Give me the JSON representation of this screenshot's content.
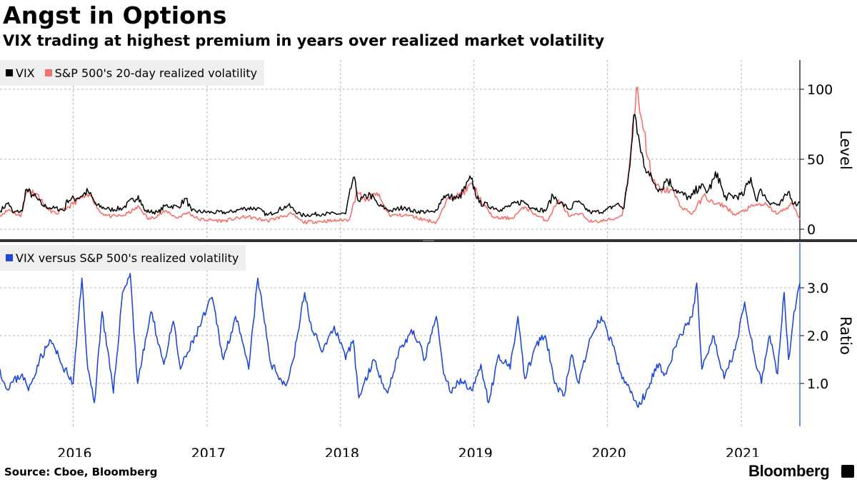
{
  "title": "Angst in Options",
  "subtitle": "VIX trading at highest premium in years over realized market volatility",
  "source": "Source: Cboe, Bloomberg",
  "brand": "Bloomberg",
  "colors": {
    "vix": "#000000",
    "realized": "#f4716b",
    "ratio": "#1f48d6",
    "grid": "#b5b5b5",
    "divider": "#333333"
  },
  "chart_data": [
    {
      "type": "line",
      "panel": "top",
      "legend_position": "top-left",
      "ylabel": "Level",
      "ylim": [
        0,
        120
      ],
      "yticks": [
        0,
        50,
        100
      ],
      "xlim": [
        "2015-06-15",
        "2021-06-10"
      ],
      "x_tick_labels": [
        "2016",
        "2017",
        "2018",
        "2019",
        "2020",
        "2021"
      ],
      "grid": true,
      "series": [
        {
          "name": "VIX",
          "color": "#000000",
          "points": [
            [
              "2015-06-15",
              13
            ],
            [
              "2015-07-08",
              19
            ],
            [
              "2015-07-20",
              12
            ],
            [
              "2015-08-15",
              13
            ],
            [
              "2015-08-24",
              28
            ],
            [
              "2015-09-15",
              24
            ],
            [
              "2015-10-10",
              17
            ],
            [
              "2015-11-05",
              15
            ],
            [
              "2015-12-10",
              14
            ],
            [
              "2015-12-15",
              21
            ],
            [
              "2016-01-10",
              22
            ],
            [
              "2016-02-11",
              27
            ],
            [
              "2016-03-05",
              17
            ],
            [
              "2016-04-10",
              14
            ],
            [
              "2016-05-15",
              15
            ],
            [
              "2016-06-27",
              24
            ],
            [
              "2016-07-15",
              13
            ],
            [
              "2016-08-20",
              12
            ],
            [
              "2016-09-10",
              17
            ],
            [
              "2016-10-15",
              16
            ],
            [
              "2016-11-04",
              22
            ],
            [
              "2016-11-20",
              13
            ],
            [
              "2017-01-15",
              12
            ],
            [
              "2017-03-01",
              12
            ],
            [
              "2017-04-15",
              15
            ],
            [
              "2017-05-18",
              15
            ],
            [
              "2017-06-15",
              10
            ],
            [
              "2017-08-11",
              17
            ],
            [
              "2017-09-15",
              10
            ],
            [
              "2017-11-15",
              11
            ],
            [
              "2018-01-15",
              11
            ],
            [
              "2018-02-05",
              37
            ],
            [
              "2018-02-20",
              20
            ],
            [
              "2018-03-23",
              25
            ],
            [
              "2018-04-15",
              17
            ],
            [
              "2018-05-20",
              13
            ],
            [
              "2018-06-25",
              16
            ],
            [
              "2018-07-15",
              13
            ],
            [
              "2018-09-15",
              12
            ],
            [
              "2018-10-11",
              24
            ],
            [
              "2018-10-29",
              23
            ],
            [
              "2018-11-20",
              22
            ],
            [
              "2018-12-24",
              36
            ],
            [
              "2019-01-15",
              19
            ],
            [
              "2019-03-15",
              14
            ],
            [
              "2019-05-13",
              20
            ],
            [
              "2019-06-15",
              15
            ],
            [
              "2019-07-15",
              13
            ],
            [
              "2019-08-05",
              24
            ],
            [
              "2019-08-25",
              19
            ],
            [
              "2019-09-20",
              14
            ],
            [
              "2019-10-08",
              20
            ],
            [
              "2019-11-15",
              12
            ],
            [
              "2019-12-25",
              13
            ],
            [
              "2020-01-27",
              18
            ],
            [
              "2020-02-15",
              15
            ],
            [
              "2020-02-28",
              40
            ],
            [
              "2020-03-16",
              82
            ],
            [
              "2020-04-01",
              55
            ],
            [
              "2020-04-25",
              38
            ],
            [
              "2020-05-25",
              28
            ],
            [
              "2020-06-11",
              36
            ],
            [
              "2020-07-15",
              26
            ],
            [
              "2020-08-15",
              22
            ],
            [
              "2020-09-08",
              31
            ],
            [
              "2020-10-01",
              27
            ],
            [
              "2020-10-28",
              40
            ],
            [
              "2020-11-15",
              23
            ],
            [
              "2021-01-05",
              24
            ],
            [
              "2021-01-27",
              37
            ],
            [
              "2021-02-10",
              21
            ],
            [
              "2021-02-25",
              28
            ],
            [
              "2021-03-15",
              20
            ],
            [
              "2021-04-15",
              17
            ],
            [
              "2021-05-12",
              27
            ],
            [
              "2021-05-25",
              18
            ],
            [
              "2021-06-10",
              19
            ]
          ]
        },
        {
          "name": "S&P 500's 20-day realized volatility",
          "color": "#f4716b",
          "points": [
            [
              "2015-06-15",
              10
            ],
            [
              "2015-07-10",
              14
            ],
            [
              "2015-08-10",
              9
            ],
            [
              "2015-08-28",
              28
            ],
            [
              "2015-09-25",
              25
            ],
            [
              "2015-10-20",
              15
            ],
            [
              "2015-11-15",
              11
            ],
            [
              "2015-12-20",
              16
            ],
            [
              "2016-01-20",
              22
            ],
            [
              "2016-02-20",
              24
            ],
            [
              "2016-03-15",
              12
            ],
            [
              "2016-04-15",
              9
            ],
            [
              "2016-05-20",
              10
            ],
            [
              "2016-06-29",
              16
            ],
            [
              "2016-07-25",
              7
            ],
            [
              "2016-09-13",
              13
            ],
            [
              "2016-10-10",
              8
            ],
            [
              "2016-11-10",
              12
            ],
            [
              "2016-12-10",
              7
            ],
            [
              "2017-02-15",
              6
            ],
            [
              "2017-04-20",
              9
            ],
            [
              "2017-06-15",
              6
            ],
            [
              "2017-08-20",
              11
            ],
            [
              "2017-09-20",
              5
            ],
            [
              "2017-12-10",
              6
            ],
            [
              "2018-01-25",
              7
            ],
            [
              "2018-02-15",
              27
            ],
            [
              "2018-03-10",
              20
            ],
            [
              "2018-04-10",
              26
            ],
            [
              "2018-05-15",
              10
            ],
            [
              "2018-07-05",
              10
            ],
            [
              "2018-08-15",
              7
            ],
            [
              "2018-09-20",
              5
            ],
            [
              "2018-10-25",
              23
            ],
            [
              "2018-11-20",
              24
            ],
            [
              "2018-12-28",
              32
            ],
            [
              "2019-01-25",
              18
            ],
            [
              "2019-02-25",
              8
            ],
            [
              "2019-04-15",
              8
            ],
            [
              "2019-05-20",
              16
            ],
            [
              "2019-06-20",
              10
            ],
            [
              "2019-07-20",
              6
            ],
            [
              "2019-08-20",
              21
            ],
            [
              "2019-09-20",
              9
            ],
            [
              "2019-10-20",
              11
            ],
            [
              "2019-11-20",
              5
            ],
            [
              "2020-01-15",
              7
            ],
            [
              "2020-02-10",
              10
            ],
            [
              "2020-02-28",
              40
            ],
            [
              "2020-03-13",
              80
            ],
            [
              "2020-03-20",
              101
            ],
            [
              "2020-04-10",
              70
            ],
            [
              "2020-05-01",
              35
            ],
            [
              "2020-05-25",
              28
            ],
            [
              "2020-06-25",
              28
            ],
            [
              "2020-07-20",
              16
            ],
            [
              "2020-08-20",
              11
            ],
            [
              "2020-09-20",
              24
            ],
            [
              "2020-10-20",
              18
            ],
            [
              "2020-11-15",
              17
            ],
            [
              "2020-12-15",
              10
            ],
            [
              "2021-02-05",
              17
            ],
            [
              "2021-03-05",
              18
            ],
            [
              "2021-04-10",
              11
            ],
            [
              "2021-05-20",
              18
            ],
            [
              "2021-06-10",
              7
            ]
          ]
        }
      ]
    },
    {
      "type": "line",
      "panel": "bottom",
      "legend_position": "top-left",
      "ylabel": "Ratio",
      "ylim": [
        0.4,
        3.9
      ],
      "yticks": [
        1.0,
        2.0,
        3.0
      ],
      "ytick_labels": [
        "1.0",
        "2.0",
        "3.0"
      ],
      "xlim": [
        "2015-06-15",
        "2021-06-10"
      ],
      "x_tick_labels": [
        "2016",
        "2017",
        "2018",
        "2019",
        "2020",
        "2021"
      ],
      "grid": true,
      "series": [
        {
          "name": "VIX versus S&P 500's realized volatility",
          "color": "#1f48d6",
          "points": [
            [
              "2015-06-15",
              1.3
            ],
            [
              "2015-07-01",
              0.9
            ],
            [
              "2015-08-15",
              1.2
            ],
            [
              "2015-09-01",
              0.85
            ],
            [
              "2015-10-01",
              1.5
            ],
            [
              "2015-11-01",
              1.9
            ],
            [
              "2015-12-01",
              1.4
            ],
            [
              "2016-01-01",
              1.0
            ],
            [
              "2016-01-25",
              3.2
            ],
            [
              "2016-02-10",
              1.3
            ],
            [
              "2016-02-28",
              0.6
            ],
            [
              "2016-03-20",
              2.5
            ],
            [
              "2016-04-20",
              0.8
            ],
            [
              "2016-05-15",
              2.9
            ],
            [
              "2016-06-05",
              3.3
            ],
            [
              "2016-06-25",
              1.0
            ],
            [
              "2016-08-01",
              2.5
            ],
            [
              "2016-09-05",
              1.4
            ],
            [
              "2016-10-01",
              2.3
            ],
            [
              "2016-10-20",
              1.3
            ],
            [
              "2016-12-01",
              2.0
            ],
            [
              "2017-01-15",
              2.8
            ],
            [
              "2017-02-15",
              1.5
            ],
            [
              "2017-03-20",
              2.4
            ],
            [
              "2017-04-25",
              1.3
            ],
            [
              "2017-05-20",
              3.2
            ],
            [
              "2017-06-25",
              1.4
            ],
            [
              "2017-08-05",
              0.95
            ],
            [
              "2017-08-25",
              1.5
            ],
            [
              "2017-09-25",
              2.9
            ],
            [
              "2017-10-15",
              2.1
            ],
            [
              "2017-11-15",
              1.7
            ],
            [
              "2017-12-15",
              2.2
            ],
            [
              "2018-01-15",
              1.5
            ],
            [
              "2018-02-05",
              1.9
            ],
            [
              "2018-02-20",
              0.7
            ],
            [
              "2018-04-01",
              1.5
            ],
            [
              "2018-05-10",
              0.8
            ],
            [
              "2018-06-10",
              1.7
            ],
            [
              "2018-07-20",
              2.1
            ],
            [
              "2018-08-20",
              1.5
            ],
            [
              "2018-09-20",
              2.4
            ],
            [
              "2018-10-10",
              1.2
            ],
            [
              "2018-11-01",
              0.8
            ],
            [
              "2018-11-25",
              1.1
            ],
            [
              "2018-12-28",
              0.85
            ],
            [
              "2019-01-20",
              1.4
            ],
            [
              "2019-02-10",
              0.6
            ],
            [
              "2019-03-10",
              1.6
            ],
            [
              "2019-04-10",
              1.3
            ],
            [
              "2019-05-01",
              2.4
            ],
            [
              "2019-05-20",
              1.1
            ],
            [
              "2019-06-20",
              1.8
            ],
            [
              "2019-07-15",
              2.0
            ],
            [
              "2019-08-10",
              1.0
            ],
            [
              "2019-09-05",
              0.75
            ],
            [
              "2019-09-25",
              1.6
            ],
            [
              "2019-10-15",
              1.0
            ],
            [
              "2019-11-10",
              1.8
            ],
            [
              "2019-12-15",
              2.4
            ],
            [
              "2020-01-15",
              1.8
            ],
            [
              "2020-02-10",
              1.1
            ],
            [
              "2020-03-01",
              0.9
            ],
            [
              "2020-03-25",
              0.5
            ],
            [
              "2020-04-20",
              0.9
            ],
            [
              "2020-05-15",
              1.4
            ],
            [
              "2020-06-10",
              1.2
            ],
            [
              "2020-07-10",
              1.9
            ],
            [
              "2020-08-20",
              2.4
            ],
            [
              "2020-09-01",
              3.1
            ],
            [
              "2020-09-15",
              1.3
            ],
            [
              "2020-10-15",
              2.0
            ],
            [
              "2020-11-15",
              1.1
            ],
            [
              "2020-12-15",
              1.7
            ],
            [
              "2021-01-10",
              2.7
            ],
            [
              "2021-02-05",
              1.6
            ],
            [
              "2021-02-25",
              1.0
            ],
            [
              "2021-03-20",
              2.0
            ],
            [
              "2021-04-10",
              1.2
            ],
            [
              "2021-04-28",
              2.9
            ],
            [
              "2021-05-10",
              1.5
            ],
            [
              "2021-05-25",
              2.5
            ],
            [
              "2021-06-10",
              3.1
            ]
          ]
        }
      ]
    }
  ]
}
